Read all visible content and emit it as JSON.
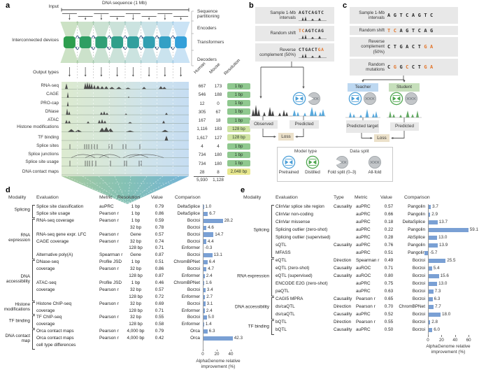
{
  "panel_labels": {
    "a": "a",
    "b": "b",
    "c": "c",
    "d": "d",
    "e": "e"
  },
  "panel_a": {
    "input_label": "Input",
    "dna_label": "DNA sequence (1 Mb)",
    "stage_labels": [
      "Sequence partitioning",
      "Encoders",
      "Transformers",
      "Decoders"
    ],
    "interconnected_label": "Interconnected devices",
    "output_types_label": "Output types",
    "col_headers": [
      "Human",
      "Mouse",
      "Resolution"
    ],
    "tracks": [
      {
        "name": "RNA-seq",
        "human": "667",
        "mouse": "173",
        "resolution": "1 bp",
        "badge": "green",
        "shape": "rna"
      },
      {
        "name": "CAGE",
        "human": "546",
        "mouse": "188",
        "resolution": "1 bp",
        "badge": "green",
        "shape": "cage"
      },
      {
        "name": "PRO-cap",
        "human": "12",
        "mouse": "0",
        "resolution": "1 bp",
        "badge": "green",
        "shape": "procap"
      },
      {
        "name": "DNase",
        "human": "305",
        "mouse": "67",
        "resolution": "1 bp",
        "badge": "green",
        "shape": "dnase"
      },
      {
        "name": "ATAC",
        "human": "167",
        "mouse": "18",
        "resolution": "1 bp",
        "badge": "green",
        "shape": "atac"
      },
      {
        "name": "Histone modifications",
        "human": "1,116",
        "mouse": "183",
        "resolution": "128 bp",
        "badge": "light",
        "shape": "histone"
      },
      {
        "name": "TF binding",
        "human": "1,617",
        "mouse": "127",
        "resolution": "128 bp",
        "badge": "light",
        "shape": "tf"
      },
      {
        "name": "Splice sites",
        "human": "4",
        "mouse": "4",
        "resolution": "1 bp",
        "badge": "green",
        "shape": "sites"
      },
      {
        "name": "Splice junctions",
        "human": "734",
        "mouse": "180",
        "resolution": "1 bp",
        "badge": "green",
        "shape": "junctions"
      },
      {
        "name": "Splice site usage",
        "human": "734",
        "mouse": "180",
        "resolution": "1 bp",
        "badge": "green",
        "shape": "usage"
      },
      {
        "name": "DNA contact maps",
        "human": "28",
        "mouse": "8",
        "resolution": "2,048 bp",
        "badge": "yellow",
        "shape": "none"
      }
    ],
    "totals": {
      "human": "5,930",
      "mouse": "1,128"
    }
  },
  "panel_b": {
    "steps": [
      {
        "label": "Sample 1-Mb intervals",
        "seq": "AGTCAGTC",
        "orange": [],
        "minitrack": true
      },
      {
        "label": "Random shift",
        "seq": "TCAGTCAG",
        "orange": [
          0,
          1
        ],
        "minitrack": true
      },
      {
        "label": "Reverse complement (50%)",
        "seq": "CTGACTGA",
        "orange": [
          6,
          7
        ],
        "minitrack": true
      }
    ],
    "observed_label": "Observed",
    "predicted_label": "Predicted",
    "loss_label": "Loss"
  },
  "panel_c": {
    "steps": [
      {
        "label": "Sample 1-Mb intervals",
        "seq": "AGTCAGTC",
        "orange": [],
        "minitrack": false
      },
      {
        "label": "Random shift",
        "seq": "TCAGTCAG",
        "orange": [
          0,
          1
        ],
        "minitrack": false
      },
      {
        "label": "Reverse complement (50%)",
        "seq": "CTGACTGA",
        "orange": [
          6,
          7
        ],
        "minitrack": false
      },
      {
        "label": "Random mutations",
        "seq": "CGGCCTGA",
        "orange": [
          1,
          3,
          6,
          7
        ],
        "minitrack": false
      }
    ],
    "teacher_label": "Teacher",
    "student_label": "Student",
    "predicted_target_label": "Predicted target",
    "predicted_label": "Predicted",
    "loss_label": "Loss"
  },
  "legend": {
    "model_type_title": "Model type",
    "data_split_title": "Data split",
    "items": [
      {
        "label": "Pretrained",
        "icon": "model-blue"
      },
      {
        "label": "Distilled",
        "icon": "model-green"
      },
      {
        "label": "Fold split (0–3)",
        "icon": "fold-split"
      },
      {
        "label": "All-fold",
        "icon": "fold-all"
      }
    ]
  },
  "colors": {
    "bar": "#7aa0d4",
    "badge_green": "#8fc88f",
    "badge_light": "#cfe3a2",
    "badge_yellow": "#e9e88f",
    "observed": "#3f3f3f",
    "predicted": "#57a9dd",
    "student": "#61a961",
    "orange": "#e2762d",
    "teacher_box": "#bdd8f1",
    "student_box": "#c6dfbb",
    "loss_box": "#ece1ca",
    "grey_box": "#e8e8e8",
    "pretrained_icon": "#4da0d8",
    "distilled_icon": "#4ea64e"
  },
  "chart_data": [
    {
      "id": "panel-d",
      "type": "bar",
      "headers": [
        "Modality",
        "Evaluation",
        "Metric",
        "Resolution",
        "Value",
        "Comparison"
      ],
      "xlabel": "AlphaGenome relative improvement (%)",
      "xticks": [
        0,
        20,
        40
      ],
      "xlim": [
        0,
        45
      ],
      "bar_color": "#7aa0d4",
      "groups": [
        {
          "label": "Splicing",
          "start": 0,
          "end": 1
        },
        {
          "label": "RNA expression",
          "start": 2,
          "end": 7
        },
        {
          "label": "DNA accessibility",
          "start": 8,
          "end": 13
        },
        {
          "label": "Histone modifications",
          "start": 14,
          "end": 15
        },
        {
          "label": "TF binding",
          "start": 16,
          "end": 17
        },
        {
          "label": "DNA contact map",
          "start": 18,
          "end": 20
        }
      ],
      "rows": [
        {
          "evaluation": "Splice site classification",
          "metric": "auPRC",
          "resolution": "1 bp",
          "value": "0.79",
          "comparison": "DeltaSplice",
          "improvement": 1.0
        },
        {
          "evaluation": "Splice site usage",
          "metric": "Pearson r",
          "resolution": "1 bp",
          "value": "0.86",
          "comparison": "DeltaSplice",
          "improvement": 6.7
        },
        {
          "evaluation": "RNA-seq coverage",
          "metric": "Pearson r",
          "resolution": "1 bp",
          "value": "0.59",
          "comparison": "Borzoi",
          "improvement": 28.2
        },
        {
          "evaluation": "",
          "metric": "",
          "resolution": "32 bp",
          "value": "0.78",
          "comparison": "Borzoi",
          "improvement": 4.6
        },
        {
          "evaluation": "RNA-seq gene expr. LFC",
          "metric": "Pearson r",
          "resolution": "Gene",
          "value": "0.57",
          "comparison": "Borzoi",
          "improvement": 14.7
        },
        {
          "evaluation": "CAGE coverage",
          "metric": "Pearson r",
          "resolution": "32 bp",
          "value": "0.74",
          "comparison": "Borzoi",
          "improvement": 4.4
        },
        {
          "evaluation": "",
          "metric": "",
          "resolution": "128 bp",
          "value": "0.71",
          "comparison": "Enformer",
          "improvement": -0.3
        },
        {
          "evaluation": "Alternative poly(A)",
          "metric": "Spearman r",
          "resolution": "Gene",
          "value": "0.87",
          "comparison": "Borzoi",
          "improvement": 13.1
        },
        {
          "evaluation": "DNase-seq",
          "metric": "Profile JSD",
          "resolution": "1 bp",
          "value": "0.51",
          "comparison": "ChromBPNet",
          "improvement": 6.4
        },
        {
          "evaluation": "coverage",
          "metric": "Pearson r",
          "resolution": "32 bp",
          "value": "0.86",
          "comparison": "Borzoi",
          "improvement": 4.7
        },
        {
          "evaluation": "",
          "metric": "",
          "resolution": "128 bp",
          "value": "0.87",
          "comparison": "Enformer",
          "improvement": 2.4
        },
        {
          "evaluation": "ATAC-seq",
          "metric": "Profile JSD",
          "resolution": "1 bp",
          "value": "0.46",
          "comparison": "ChromBPNet",
          "improvement": 1.6
        },
        {
          "evaluation": "coverage",
          "metric": "Pearson r",
          "resolution": "32 bp",
          "value": "0.57",
          "comparison": "Borzoi",
          "improvement": 3.4
        },
        {
          "evaluation": "",
          "metric": "",
          "resolution": "128 bp",
          "value": "0.72",
          "comparison": "Enformer",
          "improvement": 2.7
        },
        {
          "evaluation": "Histone ChIP-seq",
          "metric": "Pearson r",
          "resolution": "32 bp",
          "value": "0.69",
          "comparison": "Borzoi",
          "improvement": 3.1
        },
        {
          "evaluation": "coverage",
          "metric": "",
          "resolution": "128 bp",
          "value": "0.71",
          "comparison": "Enformer",
          "improvement": 2.4
        },
        {
          "evaluation": "TF ChIP-seq",
          "metric": "Pearson r",
          "resolution": "32 bp",
          "value": "0.55",
          "comparison": "Borzoi",
          "improvement": 5.0
        },
        {
          "evaluation": "coverage",
          "metric": "",
          "resolution": "128 bp",
          "value": "0.58",
          "comparison": "Enformer",
          "improvement": 1.4
        },
        {
          "evaluation": "Orca contact maps",
          "metric": "Pearson r",
          "resolution": "4,000 bp",
          "value": "0.79",
          "comparison": "Orca",
          "improvement": 6.3
        },
        {
          "evaluation": "Orca contact maps",
          "metric": "Pearson r",
          "resolution": "4,000 bp",
          "value": "0.42",
          "comparison": "Orca",
          "improvement": 42.3
        },
        {
          "evaluation": "cell type differences",
          "metric": "",
          "resolution": "",
          "value": "",
          "comparison": "",
          "improvement": null
        }
      ]
    },
    {
      "id": "panel-e",
      "type": "bar",
      "headers": [
        "Modality",
        "Evaluation",
        "Type",
        "Metric",
        "Value",
        "Comparison"
      ],
      "xlabel": "AlphaGenome relative improvement (%)",
      "xticks": [
        0,
        20,
        40,
        60
      ],
      "xlim": [
        0,
        62
      ],
      "bar_color": "#7aa0d4",
      "groups": [
        {
          "label": "Splicing",
          "start": 0,
          "end": 6
        },
        {
          "label": "RNA expression",
          "start": 7,
          "end": 11
        },
        {
          "label": "DNA accessibility",
          "start": 12,
          "end": 14
        },
        {
          "label": "TF binding",
          "start": 15,
          "end": 16
        }
      ],
      "rows": [
        {
          "evaluation": "ClinVar splice site region",
          "type": "Causality",
          "metric": "auPRC",
          "value": "0.57",
          "comparison": "Pangolin",
          "improvement": 3.7
        },
        {
          "evaluation": "ClinVar non-coding",
          "type": "",
          "metric": "auPRC",
          "value": "0.66",
          "comparison": "Pangolin",
          "improvement": 2.9
        },
        {
          "evaluation": "ClinVar missense",
          "type": "",
          "metric": "auPRC",
          "value": "0.18",
          "comparison": "DeltaSplice",
          "improvement": 13.7
        },
        {
          "evaluation": "Splicing outlier (zero-shot)",
          "type": "",
          "metric": "auPRC",
          "value": "0.22",
          "comparison": "Pangolin",
          "improvement": 59.1
        },
        {
          "evaluation": "Splicing outlier (supervised)",
          "type": "",
          "metric": "auPRC",
          "value": "0.28",
          "comparison": "AbSplice",
          "improvement": 13.0
        },
        {
          "evaluation": "sQTL",
          "type": "Causality",
          "metric": "auPRC",
          "value": "0.76",
          "comparison": "Pangolin",
          "improvement": 13.9
        },
        {
          "evaluation": "MFASS",
          "type": "",
          "metric": "auPRC",
          "value": "0.51",
          "comparison": "Pangolin",
          "improvement": -5.7
        },
        {
          "evaluation": "eQTL",
          "type": "Direction",
          "metric": "Spearman r",
          "value": "0.49",
          "comparison": "Borzoi",
          "improvement": 25.5
        },
        {
          "evaluation": "eQTL (zero-shot)",
          "type": "Causality",
          "metric": "auROC",
          "value": "0.71",
          "comparison": "Borzoi",
          "improvement": 5.4
        },
        {
          "evaluation": "eQTL (supervised)",
          "type": "Causality",
          "metric": "auROC",
          "value": "0.80",
          "comparison": "Borzoi",
          "improvement": 15.6
        },
        {
          "evaluation": "ENCODE E2G (zero-shot)",
          "type": "",
          "metric": "auPRC",
          "value": "0.75",
          "comparison": "Borzoi",
          "improvement": 13.0
        },
        {
          "evaluation": "paQTL",
          "type": "",
          "metric": "auPRC",
          "value": "0.63",
          "comparison": "Borzoi",
          "improvement": 7.3
        },
        {
          "evaluation": "CAGI5 MPRA",
          "type": "Causality",
          "metric": "Pearson r",
          "value": "0.65",
          "comparison": "Borzoi",
          "improvement": 6.3
        },
        {
          "evaluation": "ds/caQTL",
          "type": "Direction",
          "metric": "Pearson r",
          "value": "0.70",
          "comparison": "ChromBPNet",
          "improvement": 7.7
        },
        {
          "evaluation": "ds/caQTL",
          "type": "Causality",
          "metric": "auPRC",
          "value": "0.52",
          "comparison": "Borzoi",
          "improvement": 18.0
        },
        {
          "evaluation": "bQTL",
          "type": "Direction",
          "metric": "Pearson r",
          "value": "0.55",
          "comparison": "Borzoi",
          "improvement": 2.8
        },
        {
          "evaluation": "bQTL",
          "type": "Causality",
          "metric": "auPRC",
          "value": "0.50",
          "comparison": "Borzoi",
          "improvement": 6.0
        }
      ]
    }
  ]
}
